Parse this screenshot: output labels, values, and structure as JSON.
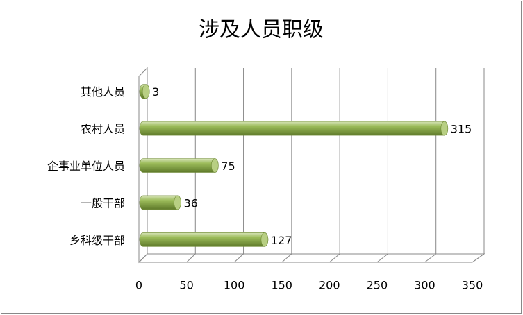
{
  "chart_data": {
    "type": "bar",
    "orientation": "horizontal",
    "title": "涉及人员职级",
    "categories": [
      "其他人员",
      "农村人员",
      "企事业单位人员",
      "一般干部",
      "乡科级干部"
    ],
    "values": [
      3,
      315,
      75,
      36,
      127
    ],
    "color": "#9bbb59",
    "xlim": [
      0,
      350
    ],
    "xticks": [
      0,
      50,
      100,
      150,
      200,
      250,
      300,
      350
    ],
    "grid": true
  }
}
